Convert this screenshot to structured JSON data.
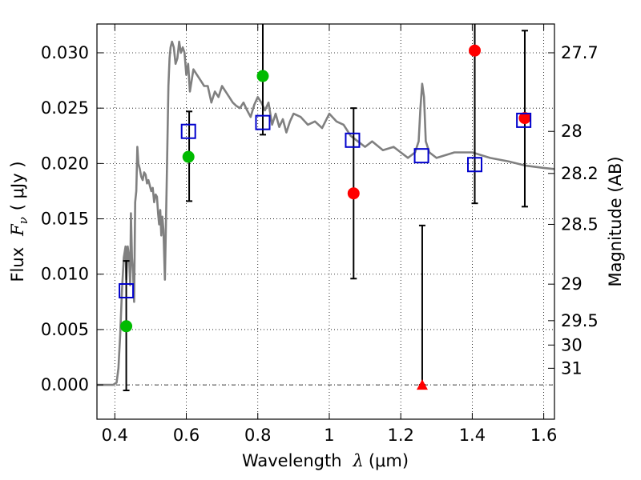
{
  "chart_data": {
    "type": "scatter",
    "x_axis": {
      "label_prefix": "Wavelength",
      "label_math": "λ",
      "label_suffix": "(μm)",
      "range": [
        0.35,
        1.63
      ],
      "ticks": [
        0.4,
        0.6,
        0.8,
        1.0,
        1.2,
        1.4,
        1.6
      ],
      "tick_labels": [
        "0.4",
        "0.6",
        "0.8",
        "1",
        "1.2",
        "1.4",
        "1.6"
      ]
    },
    "y_axis": {
      "label_prefix": "Flux",
      "label_math": "F",
      "label_math_sub": "ν",
      "label_suffix": "( μJy )",
      "range": [
        -0.0031,
        0.0326
      ],
      "ticks": [
        0.0,
        0.005,
        0.01,
        0.015,
        0.02,
        0.025,
        0.03
      ],
      "tick_labels": [
        "0.000",
        "0.005",
        "0.010",
        "0.015",
        "0.020",
        "0.025",
        "0.030"
      ]
    },
    "y2_axis": {
      "label": "Magnitude (AB)",
      "tick_values_flux": [
        0.03,
        0.0229,
        0.0191,
        0.0145,
        0.0091,
        0.0058,
        0.0036,
        0.0015
      ],
      "tick_labels": [
        "27.7",
        "28",
        "28.2",
        "28.5",
        "29",
        "29.5",
        "30",
        "31"
      ]
    },
    "grid": true,
    "legend": "none",
    "colors": {
      "model": "#808080",
      "model_points": "#0000cc",
      "detections": "#ff0000",
      "shallow_data": "#00bb00",
      "upper_limit": "#ff0000",
      "errorbars": "#000000",
      "zero_line": "#000000"
    },
    "model_spectrum": {
      "x": [
        0.35,
        0.395,
        0.405,
        0.41,
        0.415,
        0.42,
        0.425,
        0.43,
        0.432,
        0.436,
        0.44,
        0.443,
        0.445,
        0.448,
        0.451,
        0.454,
        0.457,
        0.46,
        0.463,
        0.466,
        0.47,
        0.474,
        0.478,
        0.482,
        0.486,
        0.49,
        0.494,
        0.498,
        0.502,
        0.506,
        0.51,
        0.514,
        0.518,
        0.521,
        0.524,
        0.527,
        0.53,
        0.533,
        0.536,
        0.54,
        0.545,
        0.55,
        0.553,
        0.556,
        0.56,
        0.565,
        0.57,
        0.575,
        0.58,
        0.585,
        0.59,
        0.595,
        0.6,
        0.605,
        0.61,
        0.615,
        0.62,
        0.63,
        0.64,
        0.65,
        0.66,
        0.67,
        0.68,
        0.69,
        0.7,
        0.71,
        0.72,
        0.73,
        0.74,
        0.75,
        0.76,
        0.77,
        0.78,
        0.79,
        0.8,
        0.81,
        0.82,
        0.83,
        0.84,
        0.85,
        0.86,
        0.87,
        0.88,
        0.89,
        0.9,
        0.92,
        0.94,
        0.96,
        0.98,
        1.0,
        1.02,
        1.04,
        1.06,
        1.08,
        1.1,
        1.12,
        1.15,
        1.18,
        1.2,
        1.22,
        1.24,
        1.25,
        1.255,
        1.26,
        1.265,
        1.27,
        1.28,
        1.3,
        1.35,
        1.4,
        1.45,
        1.5,
        1.55,
        1.6,
        1.63
      ],
      "y": [
        0.0,
        0.0,
        0.0002,
        0.0015,
        0.0045,
        0.0085,
        0.0115,
        0.0125,
        0.0095,
        0.0125,
        0.0115,
        0.009,
        0.0155,
        0.0115,
        0.01,
        0.0075,
        0.0165,
        0.0175,
        0.0215,
        0.02,
        0.0195,
        0.0188,
        0.0185,
        0.0192,
        0.019,
        0.0182,
        0.0185,
        0.018,
        0.0175,
        0.0178,
        0.0165,
        0.0172,
        0.017,
        0.0155,
        0.0145,
        0.0158,
        0.0135,
        0.0152,
        0.014,
        0.0095,
        0.018,
        0.027,
        0.0295,
        0.0305,
        0.031,
        0.0305,
        0.029,
        0.0295,
        0.031,
        0.03,
        0.0305,
        0.03,
        0.028,
        0.029,
        0.0265,
        0.0275,
        0.0285,
        0.028,
        0.0275,
        0.027,
        0.027,
        0.0255,
        0.0265,
        0.026,
        0.027,
        0.0265,
        0.026,
        0.0255,
        0.0252,
        0.025,
        0.0255,
        0.0248,
        0.0242,
        0.0253,
        0.026,
        0.0255,
        0.0248,
        0.0255,
        0.0235,
        0.0245,
        0.0233,
        0.024,
        0.0228,
        0.0238,
        0.0245,
        0.0242,
        0.0235,
        0.0238,
        0.0232,
        0.0245,
        0.0238,
        0.0235,
        0.0225,
        0.022,
        0.0215,
        0.022,
        0.0212,
        0.0215,
        0.021,
        0.0205,
        0.021,
        0.022,
        0.025,
        0.0272,
        0.026,
        0.022,
        0.021,
        0.0205,
        0.021,
        0.021,
        0.0205,
        0.0202,
        0.0198,
        0.0196,
        0.0195
      ]
    },
    "model_photometry": {
      "x": [
        0.432,
        0.606,
        0.814,
        1.065,
        1.258,
        1.407,
        1.544
      ],
      "y": [
        0.0085,
        0.0229,
        0.0237,
        0.0221,
        0.0207,
        0.0199,
        0.0239
      ]
    },
    "shallow_data": {
      "x": [
        0.432,
        0.606,
        0.814
      ],
      "y": [
        0.0053,
        0.0206,
        0.0279
      ]
    },
    "detections": {
      "x": [
        1.068,
        1.407,
        1.547
      ],
      "y": [
        0.0173,
        0.0302,
        0.0241
      ]
    },
    "upper_limit": {
      "x": [
        1.26
      ],
      "y": [
        0.0
      ]
    },
    "errorbars": [
      {
        "x": 0.432,
        "low": -0.0005,
        "high": 0.0112
      },
      {
        "x": 0.608,
        "low": 0.0166,
        "high": 0.0247
      },
      {
        "x": 0.814,
        "low": 0.0226,
        "high": 0.0336
      },
      {
        "x": 1.068,
        "low": 0.0096,
        "high": 0.025
      },
      {
        "x": 1.26,
        "low": 0.0,
        "high": 0.0144
      },
      {
        "x": 1.407,
        "low": 0.0164,
        "high": 0.0336
      },
      {
        "x": 1.547,
        "low": 0.0161,
        "high": 0.032
      }
    ]
  }
}
